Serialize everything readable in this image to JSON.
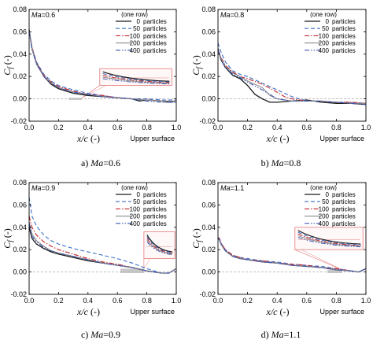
{
  "legend_header": "(one row)",
  "legend_unit": "particles",
  "upper_surface": "Upper surface",
  "xlabel": "x/c (-)",
  "ylabel": "Cf (-)",
  "styles": [
    {
      "color": "#1a1a1a",
      "dash": "",
      "w": 1.3
    },
    {
      "color": "#3a6fc6",
      "dash": "5,3",
      "w": 1.1
    },
    {
      "color": "#c0282b",
      "dash": "6,2,1.5,2",
      "w": 1.1
    },
    {
      "color": "#8c8c8c",
      "dash": "",
      "w": 1.1
    },
    {
      "color": "#3d57b5",
      "dash": "6,2,1.5,2,1.5,2",
      "w": 1.1
    }
  ],
  "inset_color": "#e88585",
  "shade_color": "#bdbdbd",
  "chart_data": [
    {
      "type": "line",
      "param_text": "Ma=0.6",
      "caption": "a) Ma=0.6",
      "xlim": [
        0,
        1.0
      ],
      "ylim": [
        -0.02,
        0.08
      ],
      "xticks": [
        "0.0",
        "0.2",
        "0.4",
        "0.6",
        "0.8",
        "1.0"
      ],
      "yticks": [
        "-0.02",
        "0.00",
        "0.02",
        "0.04",
        "0.06",
        "0.08"
      ],
      "grey_box": [
        0.27,
        0.36,
        -0.001,
        0.001
      ],
      "inset": [
        0.48,
        0.97,
        0.012,
        0.027
      ],
      "series": [
        {
          "name": "0",
          "x": [
            0.0,
            0.02,
            0.05,
            0.1,
            0.15,
            0.2,
            0.3,
            0.4,
            0.5,
            0.6,
            0.7,
            0.75,
            0.8,
            0.9,
            0.95,
            1.0
          ],
          "y": [
            0.062,
            0.045,
            0.032,
            0.02,
            0.013,
            0.009,
            0.005,
            0.003,
            0.002,
            0.001,
            0.0,
            -0.002,
            -0.001,
            -0.002,
            -0.003,
            -0.002
          ]
        },
        {
          "name": "50",
          "x": [
            0.0,
            0.02,
            0.05,
            0.1,
            0.15,
            0.2,
            0.3,
            0.4,
            0.5,
            0.6,
            0.7,
            0.8,
            0.9,
            1.0
          ],
          "y": [
            0.061,
            0.046,
            0.033,
            0.022,
            0.016,
            0.012,
            0.008,
            0.005,
            0.003,
            0.001,
            0.0,
            0.0,
            -0.001,
            -0.001
          ]
        },
        {
          "name": "100",
          "x": [
            0.0,
            0.02,
            0.05,
            0.1,
            0.15,
            0.2,
            0.3,
            0.4,
            0.5,
            0.6,
            0.7,
            0.8,
            0.9,
            1.0
          ],
          "y": [
            0.061,
            0.046,
            0.032,
            0.021,
            0.015,
            0.011,
            0.007,
            0.004,
            0.003,
            0.001,
            0.0,
            -0.001,
            -0.002,
            -0.002
          ]
        },
        {
          "name": "200",
          "x": [
            0.0,
            0.02,
            0.05,
            0.1,
            0.15,
            0.2,
            0.3,
            0.4,
            0.5,
            0.6,
            0.7,
            0.8,
            0.9,
            1.0
          ],
          "y": [
            0.061,
            0.045,
            0.031,
            0.02,
            0.014,
            0.01,
            0.006,
            0.004,
            0.002,
            0.001,
            0.0,
            -0.001,
            -0.002,
            -0.002
          ]
        },
        {
          "name": "400",
          "x": [
            0.0,
            0.02,
            0.05,
            0.1,
            0.15,
            0.2,
            0.3,
            0.4,
            0.5,
            0.6,
            0.7,
            0.8,
            0.9,
            1.0
          ],
          "y": [
            0.06,
            0.044,
            0.031,
            0.02,
            0.014,
            0.01,
            0.006,
            0.004,
            0.002,
            0.001,
            0.0,
            -0.002,
            -0.003,
            -0.003
          ]
        }
      ]
    },
    {
      "type": "line",
      "param_text": "Ma=0.8",
      "caption": "b) Ma=0.8",
      "xlim": [
        0,
        1.0
      ],
      "ylim": [
        -0.02,
        0.08
      ],
      "xticks": [
        "0.0",
        "0.2",
        "0.4",
        "0.6",
        "0.8",
        "1.0"
      ],
      "yticks": [
        "-0.02",
        "0.00",
        "0.02",
        "0.04",
        "0.06",
        "0.08"
      ],
      "grey_box": null,
      "inset": null,
      "series": [
        {
          "name": "0",
          "x": [
            0.0,
            0.02,
            0.05,
            0.1,
            0.15,
            0.2,
            0.25,
            0.3,
            0.35,
            0.4,
            0.5,
            0.6,
            0.7,
            0.8,
            0.9,
            1.0
          ],
          "y": [
            0.045,
            0.035,
            0.028,
            0.021,
            0.018,
            0.012,
            0.004,
            0.0,
            -0.003,
            -0.003,
            -0.002,
            -0.001,
            -0.003,
            -0.004,
            -0.004,
            -0.005
          ]
        },
        {
          "name": "50",
          "x": [
            0.0,
            0.02,
            0.05,
            0.1,
            0.15,
            0.2,
            0.3,
            0.4,
            0.5,
            0.55,
            0.6,
            0.7,
            0.8,
            0.9,
            1.0
          ],
          "y": [
            0.05,
            0.042,
            0.033,
            0.025,
            0.022,
            0.02,
            0.014,
            0.008,
            0.002,
            0.0,
            -0.002,
            -0.002,
            -0.003,
            -0.003,
            -0.004
          ]
        },
        {
          "name": "100",
          "x": [
            0.0,
            0.02,
            0.05,
            0.1,
            0.15,
            0.2,
            0.3,
            0.4,
            0.45,
            0.5,
            0.6,
            0.7,
            0.8,
            0.9,
            1.0
          ],
          "y": [
            0.044,
            0.037,
            0.03,
            0.024,
            0.02,
            0.018,
            0.013,
            0.006,
            0.002,
            0.0,
            -0.002,
            -0.002,
            -0.003,
            -0.003,
            -0.004
          ]
        },
        {
          "name": "200",
          "x": [
            0.0,
            0.02,
            0.05,
            0.1,
            0.15,
            0.2,
            0.3,
            0.35,
            0.4,
            0.5,
            0.6,
            0.7,
            0.8,
            0.9,
            1.0
          ],
          "y": [
            0.044,
            0.036,
            0.029,
            0.023,
            0.02,
            0.016,
            0.01,
            0.003,
            0.0,
            -0.002,
            -0.002,
            -0.002,
            -0.003,
            -0.004,
            -0.004
          ]
        },
        {
          "name": "400",
          "x": [
            0.0,
            0.02,
            0.05,
            0.1,
            0.15,
            0.2,
            0.3,
            0.4,
            0.5,
            0.6,
            0.7,
            0.8,
            0.9,
            1.0
          ],
          "y": [
            0.043,
            0.035,
            0.028,
            0.022,
            0.019,
            0.015,
            0.008,
            0.0,
            -0.002,
            -0.002,
            -0.002,
            -0.003,
            -0.004,
            -0.005
          ]
        }
      ]
    },
    {
      "type": "line",
      "param_text": "Ma=0.9",
      "caption": "c) Ma=0.9",
      "xlim": [
        0,
        1.0
      ],
      "ylim": [
        -0.02,
        0.08
      ],
      "xticks": [
        "0.0",
        "0.2",
        "0.4",
        "0.6",
        "0.8",
        "1.0"
      ],
      "yticks": [
        "-0.02",
        "0.00",
        "0.02",
        "0.04",
        "0.06",
        "0.08"
      ],
      "grey_box": [
        0.62,
        0.78,
        -0.001,
        0.003
      ],
      "inset": [
        0.78,
        0.99,
        0.012,
        0.036
      ],
      "series": [
        {
          "name": "0",
          "x": [
            0.0,
            0.02,
            0.05,
            0.1,
            0.15,
            0.2,
            0.3,
            0.4,
            0.5,
            0.6,
            0.7,
            0.8,
            0.85,
            0.9,
            0.95,
            1.0
          ],
          "y": [
            0.04,
            0.03,
            0.025,
            0.021,
            0.018,
            0.016,
            0.013,
            0.01,
            0.008,
            0.006,
            0.004,
            0.001,
            0.0,
            -0.001,
            -0.001,
            0.003
          ]
        },
        {
          "name": "50",
          "x": [
            0.0,
            0.01,
            0.02,
            0.05,
            0.1,
            0.15,
            0.2,
            0.3,
            0.4,
            0.5,
            0.6,
            0.7,
            0.8,
            0.85,
            0.9,
            0.95,
            1.0
          ],
          "y": [
            0.067,
            0.058,
            0.05,
            0.041,
            0.033,
            0.028,
            0.025,
            0.021,
            0.018,
            0.015,
            0.012,
            0.008,
            0.003,
            0.001,
            -0.001,
            -0.001,
            0.003
          ]
        },
        {
          "name": "100",
          "x": [
            0.0,
            0.02,
            0.05,
            0.1,
            0.15,
            0.2,
            0.3,
            0.4,
            0.5,
            0.6,
            0.7,
            0.8,
            0.85,
            0.9,
            0.95,
            1.0
          ],
          "y": [
            0.05,
            0.04,
            0.033,
            0.027,
            0.023,
            0.02,
            0.016,
            0.012,
            0.009,
            0.007,
            0.004,
            0.001,
            0.0,
            -0.001,
            -0.001,
            0.003
          ]
        },
        {
          "name": "200",
          "x": [
            0.0,
            0.02,
            0.05,
            0.1,
            0.15,
            0.2,
            0.3,
            0.4,
            0.5,
            0.6,
            0.7,
            0.8,
            0.85,
            0.9,
            0.95,
            1.0
          ],
          "y": [
            0.045,
            0.034,
            0.028,
            0.023,
            0.019,
            0.017,
            0.014,
            0.011,
            0.008,
            0.006,
            0.004,
            0.001,
            0.0,
            -0.001,
            -0.001,
            0.003
          ]
        },
        {
          "name": "400",
          "x": [
            0.0,
            0.02,
            0.05,
            0.1,
            0.15,
            0.2,
            0.3,
            0.4,
            0.5,
            0.6,
            0.7,
            0.8,
            0.85,
            0.9,
            0.95,
            1.0
          ],
          "y": [
            0.043,
            0.032,
            0.027,
            0.022,
            0.019,
            0.017,
            0.014,
            0.011,
            0.008,
            0.006,
            0.004,
            0.001,
            0.0,
            -0.001,
            -0.001,
            0.003
          ]
        }
      ]
    },
    {
      "type": "line",
      "param_text": "Ma=1.1",
      "caption": "d) Ma=1.1",
      "xlim": [
        0,
        1.0
      ],
      "ylim": [
        -0.02,
        0.08
      ],
      "xticks": [
        "0.0",
        "0.2",
        "0.4",
        "0.6",
        "0.8",
        "1.0"
      ],
      "yticks": [
        "-0.02",
        "0.00",
        "0.02",
        "0.04",
        "0.06",
        "0.08"
      ],
      "grey_box": [
        0.74,
        0.84,
        -0.001,
        0.002
      ],
      "inset": [
        0.52,
        0.98,
        0.02,
        0.04
      ],
      "series": [
        {
          "name": "0",
          "x": [
            0.0,
            0.01,
            0.02,
            0.05,
            0.1,
            0.15,
            0.2,
            0.3,
            0.4,
            0.5,
            0.6,
            0.7,
            0.8,
            0.9,
            0.95,
            1.0
          ],
          "y": [
            0.03,
            0.029,
            0.025,
            0.019,
            0.014,
            0.012,
            0.011,
            0.009,
            0.008,
            0.006,
            0.005,
            0.004,
            0.002,
            0.001,
            0.0,
            0.003
          ]
        },
        {
          "name": "50",
          "x": [
            0.0,
            0.01,
            0.02,
            0.05,
            0.1,
            0.15,
            0.2,
            0.3,
            0.4,
            0.5,
            0.6,
            0.7,
            0.8,
            0.9,
            0.95,
            1.0
          ],
          "y": [
            0.031,
            0.03,
            0.026,
            0.02,
            0.015,
            0.013,
            0.012,
            0.01,
            0.009,
            0.007,
            0.006,
            0.005,
            0.003,
            0.001,
            0.0,
            0.003
          ]
        },
        {
          "name": "100",
          "x": [
            0.0,
            0.01,
            0.02,
            0.05,
            0.1,
            0.15,
            0.2,
            0.3,
            0.4,
            0.5,
            0.6,
            0.7,
            0.8,
            0.9,
            0.95,
            1.0
          ],
          "y": [
            0.031,
            0.03,
            0.026,
            0.02,
            0.015,
            0.013,
            0.011,
            0.01,
            0.008,
            0.007,
            0.006,
            0.004,
            0.003,
            0.001,
            0.0,
            0.003
          ]
        },
        {
          "name": "200",
          "x": [
            0.0,
            0.01,
            0.02,
            0.05,
            0.1,
            0.15,
            0.2,
            0.3,
            0.4,
            0.5,
            0.6,
            0.7,
            0.8,
            0.9,
            0.95,
            1.0
          ],
          "y": [
            0.03,
            0.029,
            0.025,
            0.019,
            0.014,
            0.012,
            0.011,
            0.009,
            0.008,
            0.006,
            0.005,
            0.004,
            0.002,
            0.001,
            0.0,
            0.003
          ]
        },
        {
          "name": "400",
          "x": [
            0.0,
            0.01,
            0.02,
            0.05,
            0.1,
            0.15,
            0.2,
            0.3,
            0.4,
            0.5,
            0.6,
            0.7,
            0.8,
            0.9,
            0.95,
            1.0
          ],
          "y": [
            0.03,
            0.029,
            0.025,
            0.019,
            0.014,
            0.012,
            0.011,
            0.009,
            0.008,
            0.006,
            0.005,
            0.004,
            0.002,
            0.001,
            0.0,
            0.003
          ]
        }
      ]
    }
  ]
}
